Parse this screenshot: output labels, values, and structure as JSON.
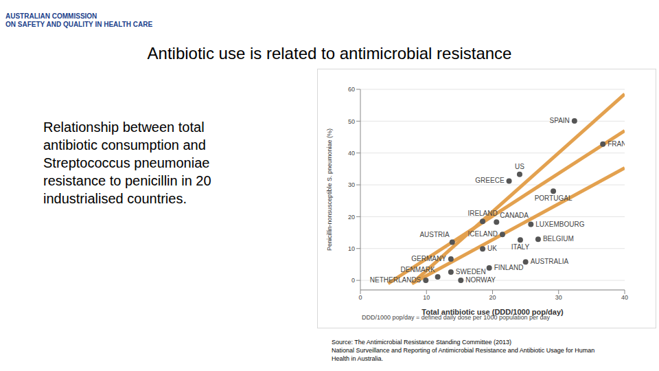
{
  "chart_data": {
    "type": "scatter",
    "header": [
      "AUSTRALIAN COMMISSION",
      "ON SAFETY AND QUALITY IN HEALTH CARE"
    ],
    "title": "Antibiotic use is related to antimicrobial resistance",
    "subtitle": "Relationship between total antibiotic consumption and Streptococcus pneumoniae resistance to penicillin in 20 industrialised countries.",
    "x_label": "Total antibiotic use (DDD/1000 pop/day)",
    "y_label": "Penicillin-nonsusceptible S. pneumoniae (%)",
    "note": "DDD/1000 pop/day = defined daily dose per 1000 population per day",
    "source": [
      "Source: The Antimicrobial Resistance Standing Committee (2013)",
      "National Surveillance and Reporting of Antimicrobial Resistance and Antibiotic Usage for Human",
      "Health in Australia."
    ],
    "labels": [
      "NETHERLANDS",
      "DENMARK",
      "GERMANY",
      "AUSTRIA",
      "SWEDEN",
      "NORWAY",
      "GREECE",
      "US",
      "IRELAND",
      "CANADA",
      "ICELAND",
      "UK",
      "ITALY",
      "FINLAND",
      "LUXEMBOURG",
      "BELGIUM",
      "AUSTRALIA",
      "PORTUGAL",
      "SPAIN",
      "FRANCE"
    ],
    "x": [
      9.9,
      11.7,
      13.7,
      13.9,
      13.7,
      15.2,
      22.5,
      24.1,
      18.5,
      20.6,
      21.5,
      18.5,
      24.2,
      19.5,
      25.8,
      26.9,
      25.0,
      29.2,
      32.4,
      36.7
    ],
    "values": [
      0,
      1.1,
      6.7,
      12,
      2.6,
      0,
      31.2,
      33.3,
      18.5,
      18.3,
      14.4,
      9.9,
      12.7,
      3.9,
      17.6,
      12.9,
      5.8,
      28.0,
      50.1,
      42.8
    ],
    "color": "#555555",
    "marker": "circle",
    "trend_lines": [
      {
        "x": [
          7.8,
          40
        ],
        "values": [
          -1,
          58.5
        ],
        "color": "#e3a14f"
      },
      {
        "x": [
          4.2,
          40
        ],
        "values": [
          -1,
          47
        ],
        "color": "#e3a14f"
      },
      {
        "x": [
          7.8,
          40
        ],
        "values": [
          -1,
          35.3
        ],
        "color": "#e3a14f"
      }
    ],
    "xlim": [
      0,
      40
    ],
    "xticks": [
      0,
      10,
      20,
      30,
      40
    ],
    "ylim": [
      -3,
      60
    ],
    "yticks": [
      0,
      10,
      20,
      30,
      40,
      50,
      60
    ],
    "grid": true
  }
}
